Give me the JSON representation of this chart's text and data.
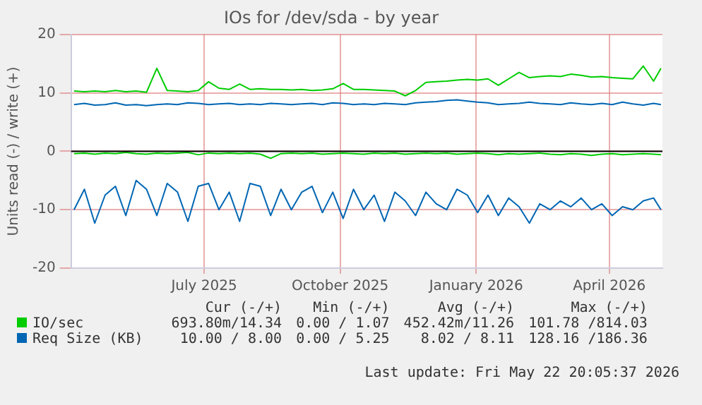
{
  "chart_data": {
    "type": "line",
    "title": "IOs for /dev/sda - by year",
    "ylabel": "Units read (-) / write (+)",
    "x": [
      "2025-04-19",
      "2025-04-26",
      "2025-05-03",
      "2025-05-10",
      "2025-05-17",
      "2025-05-24",
      "2025-05-31",
      "2025-06-07",
      "2025-06-14",
      "2025-06-21",
      "2025-06-28",
      "2025-07-05",
      "2025-07-12",
      "2025-07-19",
      "2025-07-26",
      "2025-08-02",
      "2025-08-09",
      "2025-08-16",
      "2025-08-23",
      "2025-08-30",
      "2025-09-06",
      "2025-09-13",
      "2025-09-20",
      "2025-09-27",
      "2025-10-04",
      "2025-10-11",
      "2025-10-18",
      "2025-10-25",
      "2025-11-01",
      "2025-11-08",
      "2025-11-15",
      "2025-11-22",
      "2025-11-29",
      "2025-12-06",
      "2025-12-13",
      "2025-12-20",
      "2025-12-27",
      "2026-01-03",
      "2026-01-10",
      "2026-01-17",
      "2026-01-24",
      "2026-01-31",
      "2026-02-07",
      "2026-02-14",
      "2026-02-21",
      "2026-02-28",
      "2026-03-07",
      "2026-03-14",
      "2026-03-21",
      "2026-03-28",
      "2026-04-04",
      "2026-04-11",
      "2026-04-18",
      "2026-04-25",
      "2026-05-02",
      "2026-05-09",
      "2026-05-16",
      "2026-05-21"
    ],
    "series": [
      {
        "name": "IO/sec",
        "color": "#00cc00",
        "values": [
          10.3,
          10.2,
          10.3,
          10.2,
          10.4,
          10.2,
          10.3,
          10.1,
          14.2,
          10.4,
          10.3,
          10.2,
          10.4,
          11.9,
          10.8,
          10.6,
          11.5,
          10.6,
          10.7,
          10.6,
          10.6,
          10.5,
          10.6,
          10.4,
          10.5,
          10.7,
          11.6,
          10.6,
          10.6,
          10.5,
          10.4,
          10.3,
          9.5,
          10.4,
          11.8,
          11.9,
          12.0,
          12.2,
          12.3,
          12.2,
          12.4,
          11.3,
          12.4,
          13.5,
          12.6,
          12.8,
          12.9,
          12.8,
          13.2,
          13.0,
          12.7,
          12.8,
          12.6,
          12.5,
          12.4,
          14.6,
          12.0,
          14.2
        ]
      },
      {
        "color": "#00cc00",
        "values": [
          -0.4,
          -0.3,
          -0.5,
          -0.3,
          -0.4,
          -0.2,
          -0.4,
          -0.5,
          -0.3,
          -0.4,
          -0.3,
          -0.2,
          -0.6,
          -0.3,
          -0.4,
          -0.3,
          -0.4,
          -0.3,
          -0.5,
          -1.2,
          -0.4,
          -0.3,
          -0.4,
          -0.3,
          -0.5,
          -0.4,
          -0.3,
          -0.4,
          -0.5,
          -0.3,
          -0.4,
          -0.3,
          -0.5,
          -0.4,
          -0.3,
          -0.4,
          -0.3,
          -0.5,
          -0.4,
          -0.3,
          -0.4,
          -0.6,
          -0.4,
          -0.5,
          -0.4,
          -0.3,
          -0.5,
          -0.6,
          -0.4,
          -0.5,
          -0.7,
          -0.5,
          -0.4,
          -0.6,
          -0.5,
          -0.4,
          -0.5,
          -0.6
        ]
      },
      {
        "name": "Req Size (KB)",
        "color": "#0066b3",
        "values": [
          8.0,
          8.2,
          7.9,
          8.0,
          8.3,
          7.9,
          8.0,
          7.8,
          8.0,
          8.1,
          8.0,
          8.3,
          8.2,
          8.0,
          8.1,
          8.2,
          8.0,
          8.1,
          8.0,
          8.2,
          8.1,
          8.0,
          8.1,
          8.2,
          8.0,
          8.3,
          8.2,
          8.0,
          8.1,
          8.0,
          8.2,
          8.1,
          8.0,
          8.3,
          8.4,
          8.5,
          8.7,
          8.8,
          8.6,
          8.4,
          8.3,
          8.0,
          8.1,
          8.2,
          8.4,
          8.2,
          8.1,
          8.0,
          8.3,
          8.1,
          8.0,
          8.2,
          8.0,
          8.4,
          8.1,
          7.9,
          8.2,
          8.0
        ]
      },
      {
        "color": "#0066b3",
        "values": [
          -10,
          -6.5,
          -12.3,
          -7.5,
          -6,
          -11,
          -5,
          -6.5,
          -11,
          -5.5,
          -7,
          -12,
          -6,
          -5.5,
          -10,
          -7,
          -12,
          -5.5,
          -6,
          -11,
          -6.5,
          -10,
          -7,
          -6,
          -10.5,
          -7,
          -11.5,
          -6.5,
          -10,
          -7.5,
          -12,
          -7,
          -8.5,
          -11,
          -7,
          -9,
          -10,
          -6.5,
          -7.5,
          -10.5,
          -7.5,
          -11,
          -8,
          -9.5,
          -12.3,
          -9,
          -10,
          -8.5,
          -9.5,
          -8,
          -10,
          -9,
          -11,
          -9.5,
          -10,
          -8.5,
          -8,
          -10
        ]
      }
    ],
    "xlim": [
      "2025-04-17",
      "2026-05-22"
    ],
    "xticks": [
      {
        "value": "2025-07-16",
        "label": "July 2025"
      },
      {
        "value": "2025-10-16",
        "label": "October 2025"
      },
      {
        "value": "2026-01-16",
        "label": "January 2026"
      },
      {
        "value": "2026-04-16",
        "label": "April 2026"
      }
    ],
    "ylim": [
      -20,
      20
    ],
    "yticks": [
      -20,
      -10,
      0,
      10,
      20
    ],
    "ref_lines": [
      {
        "axis": "y",
        "value": 0,
        "color": "#000000"
      }
    ],
    "grid": true,
    "legend": "bottom",
    "marker": "none",
    "line_style": "solid",
    "annotations": [
      "Cur (-/+)",
      "Min (-/+)",
      "Avg (-/+)",
      "Max (-/+)",
      "693.80m/14.34",
      "0.00 / 1.07",
      "452.42m/11.26",
      "101.78 /814.03",
      "10.00 / 8.00",
      "0.00 / 5.25",
      "8.02 / 8.11",
      "128.16 /186.36",
      "Last update: Fri May 22 20:05:37 2026"
    ]
  }
}
